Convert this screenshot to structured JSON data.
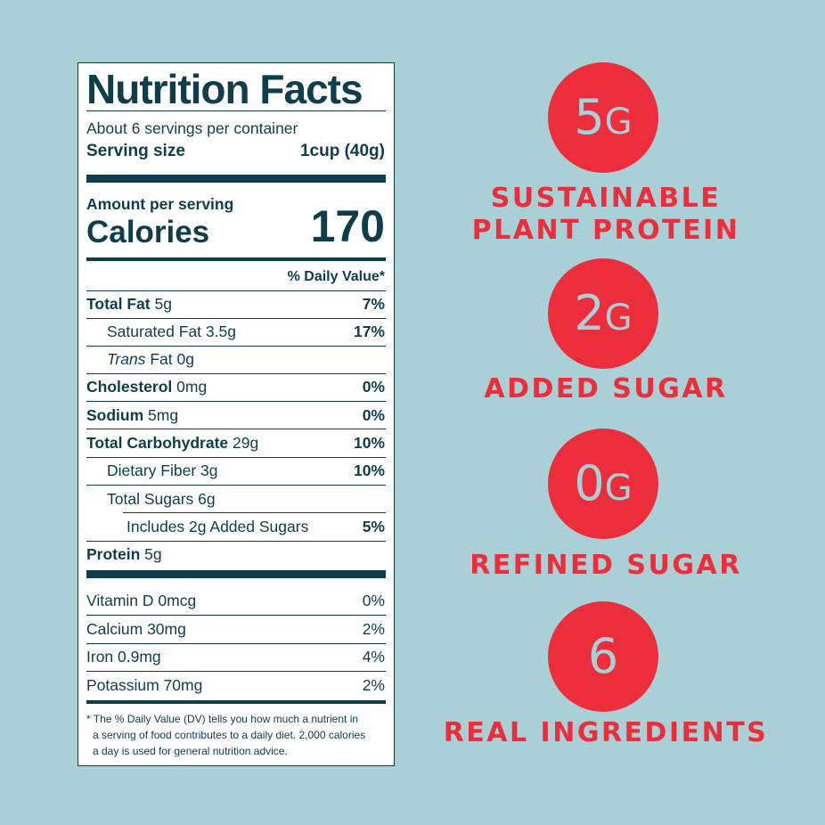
{
  "label": {
    "title": "Nutrition Facts",
    "servings": "About 6 servings per container",
    "serving_size_label": "Serving size",
    "serving_size_value": "1cup (40g)",
    "amount_per_serving": "Amount per serving",
    "calories_label": "Calories",
    "calories_value": "170",
    "dv_header": "% Daily Value*",
    "rows": [
      {
        "name": "Total Fat",
        "amount": "5g",
        "dv": "7%"
      },
      {
        "name": "Saturated Fat",
        "amount": "3.5g",
        "dv": "17%"
      },
      {
        "name": "Trans",
        "amount": "Fat 0g",
        "dv": ""
      },
      {
        "name": "Cholesterol",
        "amount": "0mg",
        "dv": "0%"
      },
      {
        "name": "Sodium",
        "amount": "5mg",
        "dv": "0%"
      },
      {
        "name": "Total Carbohydrate",
        "amount": "29g",
        "dv": "10%"
      },
      {
        "name": "Dietary Fiber",
        "amount": "3g",
        "dv": "10%"
      },
      {
        "name": "Total Sugars",
        "amount": "6g",
        "dv": ""
      },
      {
        "name": "Includes 2g Added Sugars",
        "amount": "",
        "dv": "5%"
      },
      {
        "name": "Protein",
        "amount": "5g",
        "dv": ""
      }
    ],
    "vitamins": [
      {
        "name": "Vitamin D 0mcg",
        "dv": "0%"
      },
      {
        "name": "Calcium 30mg",
        "dv": "2%"
      },
      {
        "name": "Iron 0.9mg",
        "dv": "4%"
      },
      {
        "name": "Potassium 70mg",
        "dv": "2%"
      }
    ],
    "footnote": [
      "* The % Daily Value (DV) tells you how much a nutrient in",
      "a serving of food contributes to a daily diet. 2,000 calories",
      "a day is used for general nutrition advice."
    ]
  },
  "badges": [
    {
      "value": "5",
      "unit": "G",
      "caption_lines": [
        "SUSTAINABLE",
        "PLANT PROTEIN"
      ]
    },
    {
      "value": "2",
      "unit": "G",
      "caption_lines": [
        "ADDED SUGAR"
      ]
    },
    {
      "value": "0",
      "unit": "G",
      "caption_lines": [
        "REFINED SUGAR"
      ]
    },
    {
      "value": "6",
      "unit": "",
      "caption_lines": [
        "REAL INGREDIENTS"
      ]
    }
  ],
  "colors": {
    "background": "#a8d0d6",
    "navy": "#0f3d4a",
    "red": "#ec2e3c"
  }
}
